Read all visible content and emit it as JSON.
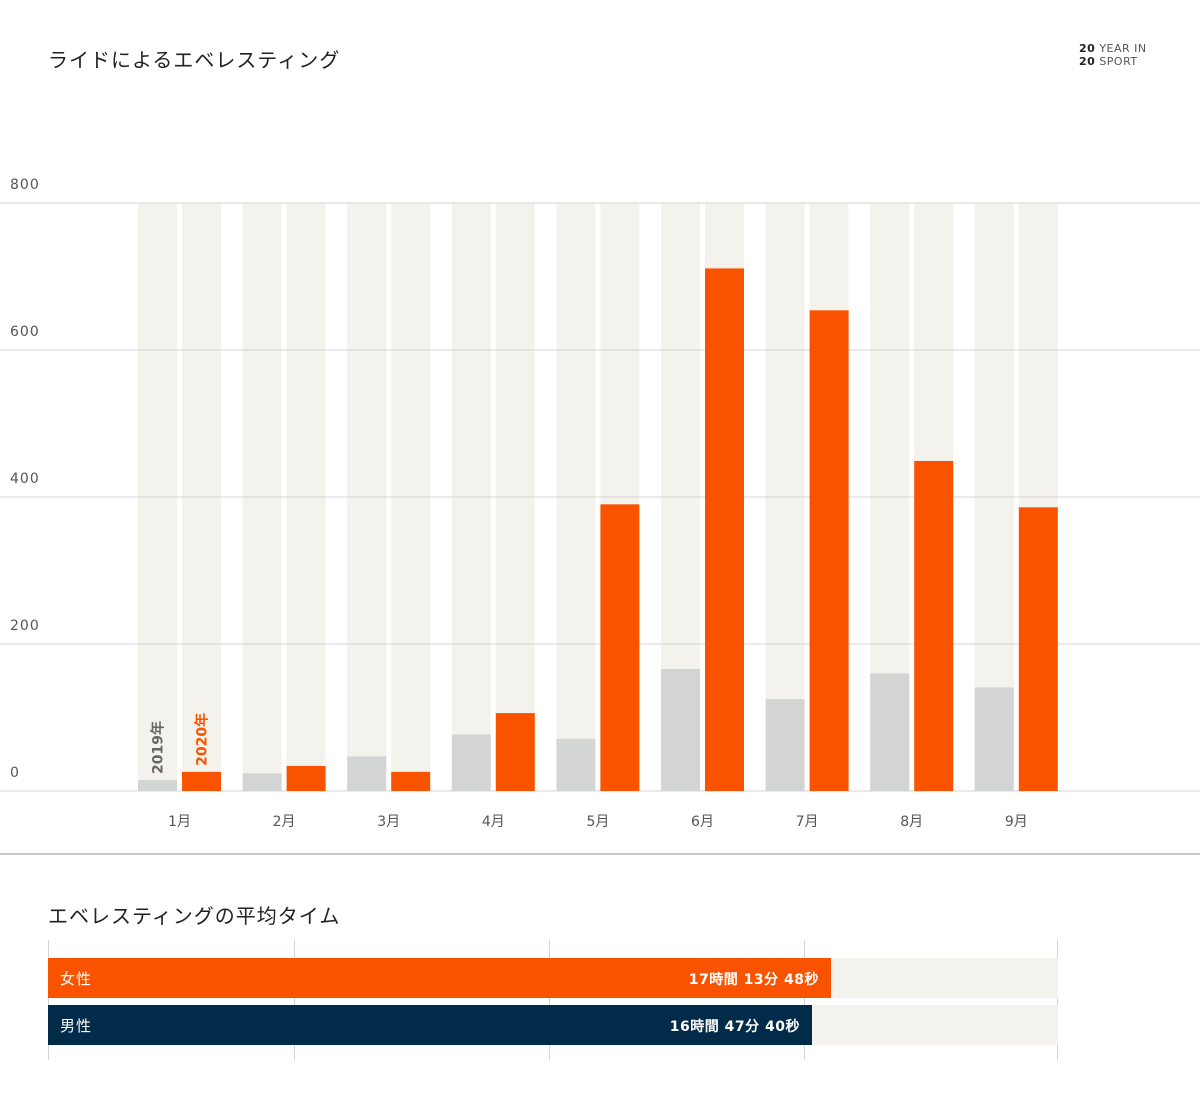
{
  "header": {
    "title": "ライドによるエベレスティング",
    "logo_year_top": "20",
    "logo_year_bottom": "20",
    "logo_text_top": "YEAR IN",
    "logo_text_bottom": "SPORT"
  },
  "colors": {
    "orange": "#fa5300",
    "gray_bar": "#d2d5d3",
    "track": "#f3f2ec",
    "navy": "#022a49",
    "grid": "#d4d4d4"
  },
  "chart_data": {
    "type": "bar",
    "title": "ライドによるエベレスティング",
    "categories": [
      "1月",
      "2月",
      "3月",
      "4月",
      "5月",
      "6月",
      "7月",
      "8月",
      "9月"
    ],
    "series": [
      {
        "name": "2019年",
        "color": "#d2d5d3",
        "values": [
          15,
          24,
          47,
          77,
          71,
          166,
          125,
          160,
          141
        ]
      },
      {
        "name": "2020年",
        "color": "#fa5300",
        "values": [
          26,
          34,
          26,
          106,
          390,
          711,
          654,
          449,
          386
        ]
      }
    ],
    "ylim": [
      0,
      800
    ],
    "yticks": [
      0,
      200,
      400,
      600,
      800
    ],
    "grid": true
  },
  "average_time": {
    "title": "エベレスティングの平均タイム",
    "rows": [
      {
        "label": "女性",
        "value_text": "17時間 13分 48秒",
        "fraction": 0.775,
        "color": "#fa5300"
      },
      {
        "label": "男性",
        "value_text": "16時間 47分 40秒",
        "fraction": 0.756,
        "color": "#022a49"
      }
    ]
  }
}
